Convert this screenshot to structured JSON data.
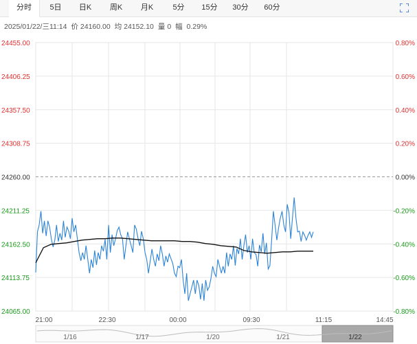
{
  "tabs": [
    {
      "label": "分时",
      "active": true
    },
    {
      "label": "5日",
      "active": false
    },
    {
      "label": "日K",
      "active": false
    },
    {
      "label": "周K",
      "active": false
    },
    {
      "label": "月K",
      "active": false
    },
    {
      "label": "5分",
      "active": false
    },
    {
      "label": "15分",
      "active": false
    },
    {
      "label": "30分",
      "active": false
    },
    {
      "label": "60分",
      "active": false
    }
  ],
  "info": {
    "datetime": "2025/01/22/三11:14",
    "price": "价 24160.00",
    "avg": "均 24152.10",
    "volume": "量 0",
    "change": "幅  0.29%"
  },
  "colors": {
    "up": "#e03030",
    "down": "#1a9a1a",
    "price_line": "#2b83d6",
    "avg_line": "#111111",
    "grid": "#e6e6e6"
  },
  "chart_data": {
    "type": "line",
    "y_left_ticks": [
      "24455.00",
      "24406.25",
      "24357.50",
      "24308.75",
      "24260.00",
      "24211.25",
      "24162.50",
      "24113.75",
      "24065.00"
    ],
    "y_right_ticks": [
      "0.80%",
      "0.60%",
      "0.40%",
      "0.20%",
      "0.00%",
      "-0.20%",
      "-0.40%",
      "-0.60%",
      "-0.80%"
    ],
    "ylim": [
      24065,
      24455
    ],
    "reference": 24260,
    "x_ticks": [
      "21:00",
      "22:30",
      "00:00",
      "09:30",
      "11:15",
      "14:45"
    ],
    "series": [
      {
        "role": "price",
        "values": [
          24121,
          24180,
          24190,
          24210,
          24178,
          24196,
          24174,
          24196,
          24187,
          24170,
          24158,
          24168,
          24190,
          24166,
          24178,
          24168,
          24196,
          24172,
          24187,
          24181,
          24170,
          24200,
          24180,
          24190,
          24170,
          24150,
          24138,
          24150,
          24140,
          24160,
          24140,
          24120,
          24140,
          24128,
          24153,
          24132,
          24150,
          24140,
          24160,
          24152,
          24169,
          24140,
          24190,
          24150,
          24176,
          24160,
          24170,
          24182,
          24187,
          24176,
          24170,
          24140,
          24160,
          24180,
          24170,
          24160,
          24150,
          24190,
          24184,
          24170,
          24160,
          24181,
          24170,
          24150,
          24140,
          24120,
          24138,
          24155,
          24140,
          24130,
          24148,
          24138,
          24160,
          24148,
          24130,
          24145,
          24136,
          24148,
          24141,
          24134,
          24120,
          24115,
          24130,
          24128,
          24140,
          24110,
          24090,
          24120,
          24080,
          24090,
          24100,
          24110,
          24090,
          24110,
          24102,
          24082,
          24105,
          24080,
          24110,
          24095,
          24100,
          24112,
          24130,
          24120,
          24115,
          24140,
          24130,
          24120,
          24130,
          24120,
          24150,
          24130,
          24148,
          24140,
          24160,
          24131,
          24156,
          24148,
          24170,
          24140,
          24160,
          24176,
          24150,
          24160,
          24140,
          24170,
          24150,
          24147,
          24130,
          24161,
          24151,
          24178,
          24148,
          24164,
          24126,
          24131,
          24168,
          24210,
          24190,
          24168,
          24186,
          24200,
          24210,
          24190,
          24180,
          24220,
          24208,
          24170,
          24200,
          24230,
          24200,
          24180,
          24181,
          24166,
          24180,
          24175,
          24168,
          24175,
          24180,
          24172,
          24180
        ]
      },
      {
        "role": "average",
        "values": [
          24135,
          24157,
          24162,
          24163,
          24164,
          24166,
          24168,
          24169,
          24170,
          24170,
          24171,
          24171,
          24170,
          24169,
          24168,
          24167,
          24167,
          24167,
          24167,
          24166,
          24166,
          24165,
          24163,
          24162,
          24160,
          24159,
          24158,
          24153,
          24151,
          24150,
          24149,
          24150,
          24151,
          24151,
          24152,
          24152,
          24152
        ]
      }
    ],
    "navigator_labels": [
      "1/16",
      "1/17",
      "1/20",
      "1/21",
      "1/22"
    ]
  }
}
